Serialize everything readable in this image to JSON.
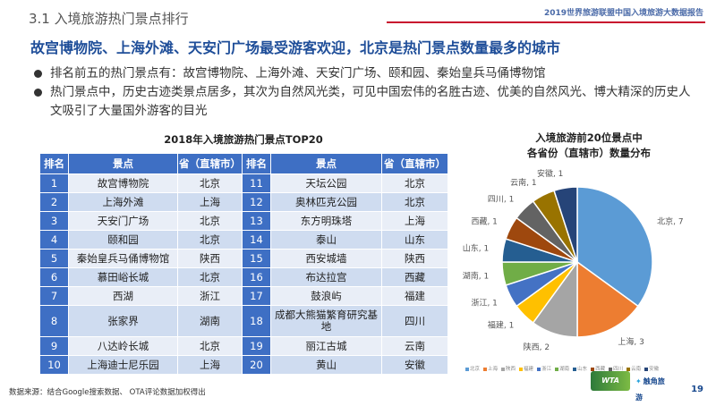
{
  "header": {
    "section_title": "3.1 入境旅游热门景点排行",
    "report_name": "2019世界旅游联盟中国入境旅游大数据报告"
  },
  "headline": "故宫博物院、上海外滩、天安门广场最受游客欢迎，北京是热门景点数量最多的城市",
  "bullets": [
    "排名前五的热门景点有：故宫博物院、上海外滩、天安门广场、颐和园、秦始皇兵马俑博物馆",
    "热门景点中，历史古迹类景点居多，其次为自然风光类，可见中国宏伟的名胜古迹、优美的自然风光、博大精深的历史人文吸引了大量国外游客的目光"
  ],
  "table": {
    "title": "2018年入境旅游热门景点TOP20",
    "headers": [
      "排名",
      "景点",
      "省（直辖市）",
      "排名",
      "景点",
      "省（直辖市）"
    ],
    "rows": [
      {
        "r1": "1",
        "s1": "故宫博物院",
        "p1": "北京",
        "r2": "11",
        "s2": "天坛公园",
        "p2": "北京"
      },
      {
        "r1": "2",
        "s1": "上海外滩",
        "p1": "上海",
        "r2": "12",
        "s2": "奥林匹克公园",
        "p2": "北京"
      },
      {
        "r1": "3",
        "s1": "天安门广场",
        "p1": "北京",
        "r2": "13",
        "s2": "东方明珠塔",
        "p2": "上海"
      },
      {
        "r1": "4",
        "s1": "颐和园",
        "p1": "北京",
        "r2": "14",
        "s2": "泰山",
        "p2": "山东"
      },
      {
        "r1": "5",
        "s1": "秦始皇兵马俑博物馆",
        "p1": "陕西",
        "r2": "15",
        "s2": "西安城墙",
        "p2": "陕西"
      },
      {
        "r1": "6",
        "s1": "慕田峪长城",
        "p1": "北京",
        "r2": "16",
        "s2": "布达拉宫",
        "p2": "西藏"
      },
      {
        "r1": "7",
        "s1": "西湖",
        "p1": "浙江",
        "r2": "17",
        "s2": "鼓浪屿",
        "p2": "福建"
      },
      {
        "r1": "8",
        "s1": "张家界",
        "p1": "湖南",
        "r2": "18",
        "s2": "成都大熊猫繁育研究基地",
        "p2": "四川"
      },
      {
        "r1": "9",
        "s1": "八达岭长城",
        "p1": "北京",
        "r2": "19",
        "s2": "丽江古城",
        "p2": "云南"
      },
      {
        "r1": "10",
        "s1": "上海迪士尼乐园",
        "p1": "上海",
        "r2": "20",
        "s2": "黄山",
        "p2": "安徽"
      }
    ]
  },
  "chart_data": {
    "type": "pie",
    "title_line1": "入境旅游前20位景点中",
    "title_line2": "各省份（直辖市）数量分布",
    "slices": [
      {
        "label": "北京",
        "value": 7,
        "color": "#5b9bd5"
      },
      {
        "label": "上海",
        "value": 3,
        "color": "#ed7d31"
      },
      {
        "label": "陕西",
        "value": 2,
        "color": "#a5a5a5"
      },
      {
        "label": "福建",
        "value": 1,
        "color": "#ffc000"
      },
      {
        "label": "浙江",
        "value": 1,
        "color": "#4472c4"
      },
      {
        "label": "湖南",
        "value": 1,
        "color": "#70ad47"
      },
      {
        "label": "山东",
        "value": 1,
        "color": "#255e91"
      },
      {
        "label": "西藏",
        "value": 1,
        "color": "#9e480e"
      },
      {
        "label": "四川",
        "value": 1,
        "color": "#636363"
      },
      {
        "label": "云南",
        "value": 1,
        "color": "#997300"
      },
      {
        "label": "安徽",
        "value": 1,
        "color": "#264478"
      }
    ],
    "legend_position": "bottom"
  },
  "footer": {
    "source": "数据来源：结合Google搜索数据、 OTA评论数据加权得出",
    "logo_a_text": "WTA",
    "logo_b_text": "触角旅游",
    "page_number": "19"
  }
}
